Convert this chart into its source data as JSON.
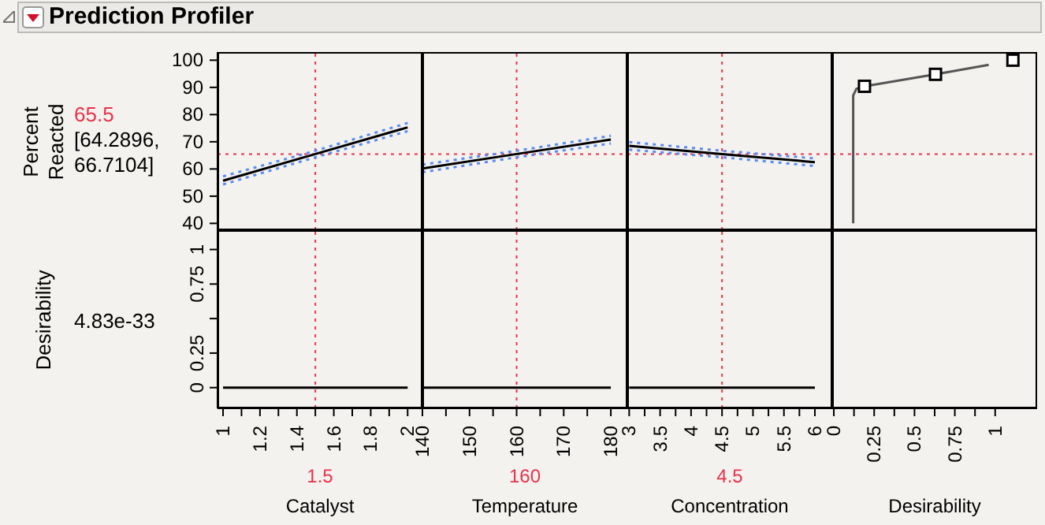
{
  "chart_data": [
    {
      "type": "line",
      "title": "Prediction Profiler",
      "ylabel": "Percent Reacted",
      "annotations": [
        "65.5",
        "[64.2896, 66.7104]"
      ],
      "xlim": [
        0.97,
        2.08
      ],
      "ylim": [
        37.5,
        103
      ],
      "yticks": [
        40,
        50,
        60,
        70,
        80,
        90,
        100
      ],
      "tick_labels": "y",
      "legend": false,
      "grid": false,
      "ref_lines": [
        {
          "axis": "y",
          "value": 65.5,
          "color": "#e8334a",
          "line_style": "dotted"
        },
        {
          "axis": "x",
          "value": 1.5,
          "color": "#e8334a",
          "line_style": "dotted"
        }
      ],
      "series": [
        {
          "color": "#000000",
          "x": [
            1,
            1.5,
            2
          ],
          "values": [
            55.7,
            65.5,
            75.3
          ]
        },
        {
          "color": "#5b8cf0",
          "line_style": "dotted",
          "x": [
            1,
            1.5,
            2
          ],
          "values": [
            54.3,
            64.3,
            73.9
          ]
        },
        {
          "color": "#5b8cf0",
          "line_style": "dotted",
          "x": [
            1,
            1.5,
            2
          ],
          "values": [
            57.3,
            66.7,
            76.9
          ]
        }
      ]
    },
    {
      "type": "line",
      "xlim": [
        140,
        183.5
      ],
      "ylim": [
        37.5,
        103
      ],
      "tick_labels": false,
      "legend": false,
      "grid": false,
      "ref_lines": [
        {
          "axis": "y",
          "value": 65.5,
          "color": "#e8334a",
          "line_style": "dotted"
        },
        {
          "axis": "x",
          "value": 160,
          "color": "#e8334a",
          "line_style": "dotted"
        }
      ],
      "series": [
        {
          "color": "#000000",
          "x": [
            140,
            160,
            180
          ],
          "values": [
            60.2,
            65.5,
            70.8
          ]
        },
        {
          "color": "#5b8cf0",
          "line_style": "dotted",
          "x": [
            140,
            160,
            180
          ],
          "values": [
            58.8,
            64.3,
            69.4
          ]
        },
        {
          "color": "#5b8cf0",
          "line_style": "dotted",
          "x": [
            140,
            160,
            180
          ],
          "values": [
            61.6,
            66.7,
            72.2
          ]
        }
      ]
    },
    {
      "type": "line",
      "xlim": [
        2.97,
        6.28
      ],
      "ylim": [
        37.5,
        103
      ],
      "tick_labels": false,
      "legend": false,
      "grid": false,
      "ref_lines": [
        {
          "axis": "y",
          "value": 65.5,
          "color": "#e8334a",
          "line_style": "dotted"
        },
        {
          "axis": "x",
          "value": 4.5,
          "color": "#e8334a",
          "line_style": "dotted"
        }
      ],
      "series": [
        {
          "color": "#000000",
          "x": [
            3,
            4.5,
            6
          ],
          "values": [
            68.5,
            65.5,
            62.5
          ]
        },
        {
          "color": "#5b8cf0",
          "line_style": "dotted",
          "x": [
            3,
            4.5,
            6
          ],
          "values": [
            67.1,
            64.3,
            61.1
          ]
        },
        {
          "color": "#5b8cf0",
          "line_style": "dotted",
          "x": [
            3,
            4.5,
            6
          ],
          "values": [
            69.9,
            66.7,
            63.9
          ]
        }
      ]
    },
    {
      "type": "line",
      "xlim": [
        -0.01,
        1.26
      ],
      "ylim": [
        37.5,
        103
      ],
      "tick_labels": false,
      "legend": false,
      "grid": false,
      "ref_lines": [
        {
          "axis": "y",
          "value": 65.5,
          "color": "#e8334a",
          "line_style": "dotted"
        }
      ],
      "series": [
        {
          "color": "#555555",
          "x": [
            0.12,
            0.12,
            0.14,
            0.19,
            0.63,
            0.96
          ],
          "values": [
            40,
            87,
            89.5,
            90.4,
            94.8,
            98.3
          ]
        },
        {
          "type": "scatter",
          "marker": "square",
          "color": "#000000",
          "x": [
            0.19,
            0.63,
            1.11
          ],
          "values": [
            90.4,
            94.8,
            100
          ]
        }
      ]
    },
    {
      "type": "line",
      "ylabel": "Desirability",
      "xlabel": "Catalyst",
      "annotations": [
        "4.83e-33",
        "1.5"
      ],
      "xlim": [
        0.97,
        2.08
      ],
      "xticks": [
        1,
        {
          "value": 1.1,
          "label": null
        },
        1.2,
        {
          "value": 1.3,
          "label": null
        },
        1.4,
        {
          "value": 1.5,
          "label": null
        },
        1.6,
        {
          "value": 1.7,
          "label": null
        },
        1.8,
        {
          "value": 1.9,
          "label": null
        },
        2
      ],
      "ylim": [
        -0.15,
        1.14
      ],
      "yticks": [
        0,
        0.25,
        {
          "value": 0.5,
          "label": null
        },
        0.75,
        1
      ],
      "legend": false,
      "grid": false,
      "ref_lines": [
        {
          "axis": "x",
          "value": 1.5,
          "color": "#e8334a",
          "line_style": "dotted"
        }
      ],
      "series": [
        {
          "color": "#000000",
          "x": [
            1,
            2
          ],
          "values": [
            0,
            0
          ]
        }
      ]
    },
    {
      "type": "line",
      "xlabel": "Temperature",
      "annotations": [
        "160"
      ],
      "xlim": [
        140,
        183.5
      ],
      "xticks": [
        140,
        {
          "value": 145,
          "label": null
        },
        150,
        {
          "value": 155,
          "label": null
        },
        160,
        {
          "value": 165,
          "label": null
        },
        170,
        {
          "value": 175,
          "label": null
        },
        180
      ],
      "ylim": [
        -0.15,
        1.14
      ],
      "tick_labels": "x",
      "legend": false,
      "grid": false,
      "ref_lines": [
        {
          "axis": "x",
          "value": 160,
          "color": "#e8334a",
          "line_style": "dotted"
        }
      ],
      "series": [
        {
          "color": "#000000",
          "x": [
            140,
            180
          ],
          "values": [
            0,
            0
          ]
        }
      ]
    },
    {
      "type": "line",
      "xlabel": "Concentration",
      "annotations": [
        "4.5"
      ],
      "xlim": [
        2.97,
        6.28
      ],
      "xticks": [
        3,
        {
          "value": 3.25,
          "label": null
        },
        3.5,
        {
          "value": 3.75,
          "label": null
        },
        4,
        {
          "value": 4.25,
          "label": null
        },
        4.5,
        {
          "value": 4.75,
          "label": null
        },
        5,
        {
          "value": 5.25,
          "label": null
        },
        5.5,
        {
          "value": 5.75,
          "label": null
        },
        6
      ],
      "ylim": [
        -0.15,
        1.14
      ],
      "tick_labels": "x",
      "legend": false,
      "grid": false,
      "ref_lines": [
        {
          "axis": "x",
          "value": 4.5,
          "color": "#e8334a",
          "line_style": "dotted"
        }
      ],
      "series": [
        {
          "color": "#000000",
          "x": [
            3,
            6
          ],
          "values": [
            0,
            0
          ]
        }
      ]
    },
    {
      "type": "line",
      "xlabel": "Desirability",
      "xlim": [
        -0.01,
        1.26
      ],
      "xticks": [
        0,
        {
          "value": 0.125,
          "label": null
        },
        0.25,
        {
          "value": 0.375,
          "label": null
        },
        0.5,
        {
          "value": 0.625,
          "label": null
        },
        0.75,
        {
          "value": 0.875,
          "label": null
        },
        1
      ],
      "ylim": [
        -0.15,
        1.14
      ],
      "tick_labels": "x",
      "legend": false,
      "grid": false
    }
  ]
}
